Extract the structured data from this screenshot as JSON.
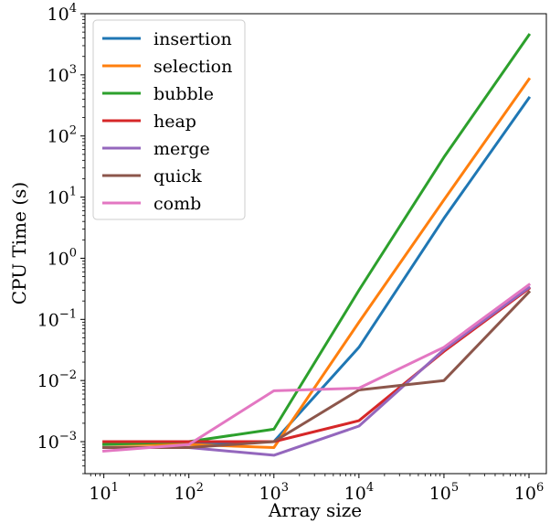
{
  "chart_data": {
    "type": "line",
    "xlabel": "Array size",
    "ylabel": "CPU Time (s)",
    "x": [
      10,
      100,
      1000,
      10000,
      100000,
      1000000
    ],
    "xscale": "log",
    "yscale": "log",
    "xlim": [
      6,
      1600000
    ],
    "ylim": [
      0.0003,
      10000
    ],
    "x_ticks": [
      {
        "value": 10,
        "base": "10",
        "exp": "1"
      },
      {
        "value": 100,
        "base": "10",
        "exp": "2"
      },
      {
        "value": 1000,
        "base": "10",
        "exp": "3"
      },
      {
        "value": 10000,
        "base": "10",
        "exp": "4"
      },
      {
        "value": 100000,
        "base": "10",
        "exp": "5"
      },
      {
        "value": 1000000,
        "base": "10",
        "exp": "6"
      }
    ],
    "y_ticks": [
      {
        "value": 0.001,
        "base": "10",
        "exp": "−3"
      },
      {
        "value": 0.01,
        "base": "10",
        "exp": "−2"
      },
      {
        "value": 0.1,
        "base": "10",
        "exp": "−1"
      },
      {
        "value": 1,
        "base": "10",
        "exp": "0"
      },
      {
        "value": 10,
        "base": "10",
        "exp": "1"
      },
      {
        "value": 100,
        "base": "10",
        "exp": "2"
      },
      {
        "value": 1000,
        "base": "10",
        "exp": "3"
      },
      {
        "value": 10000,
        "base": "10",
        "exp": "4"
      }
    ],
    "legend_position": "top-left",
    "series": [
      {
        "name": "insertion",
        "color": "#1f77b4",
        "values": [
          0.0009,
          0.0009,
          0.001,
          0.035,
          4.5,
          420
        ]
      },
      {
        "name": "selection",
        "color": "#ff7f0e",
        "values": [
          0.0009,
          0.0009,
          0.0008,
          0.09,
          9,
          850
        ]
      },
      {
        "name": "bubble",
        "color": "#2ca02c",
        "values": [
          0.0009,
          0.001,
          0.0016,
          0.3,
          45,
          4500
        ]
      },
      {
        "name": "heap",
        "color": "#d62728",
        "values": [
          0.001,
          0.001,
          0.001,
          0.0022,
          0.03,
          0.32
        ]
      },
      {
        "name": "merge",
        "color": "#9467bd",
        "values": [
          0.0008,
          0.0008,
          0.0006,
          0.0018,
          0.032,
          0.33
        ]
      },
      {
        "name": "quick",
        "color": "#8c564b",
        "values": [
          0.0008,
          0.0008,
          0.001,
          0.007,
          0.01,
          0.28
        ]
      },
      {
        "name": "comb",
        "color": "#e377c2",
        "values": [
          0.0007,
          0.0009,
          0.0068,
          0.0075,
          0.035,
          0.37
        ]
      }
    ]
  }
}
